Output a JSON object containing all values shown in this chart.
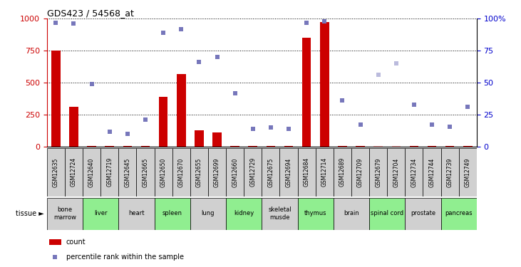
{
  "title": "GDS423 / 54568_at",
  "samples": [
    "GSM12635",
    "GSM12724",
    "GSM12640",
    "GSM12719",
    "GSM12645",
    "GSM12665",
    "GSM12650",
    "GSM12670",
    "GSM12655",
    "GSM12699",
    "GSM12660",
    "GSM12729",
    "GSM12675",
    "GSM12694",
    "GSM12684",
    "GSM12714",
    "GSM12689",
    "GSM12709",
    "GSM12679",
    "GSM12704",
    "GSM12734",
    "GSM12744",
    "GSM12739",
    "GSM12749"
  ],
  "tissues": [
    {
      "name": "bone\nmarrow",
      "start": 0,
      "end": 2,
      "color": "#d0d0d0"
    },
    {
      "name": "liver",
      "start": 2,
      "end": 4,
      "color": "#90ee90"
    },
    {
      "name": "heart",
      "start": 4,
      "end": 6,
      "color": "#d0d0d0"
    },
    {
      "name": "spleen",
      "start": 6,
      "end": 8,
      "color": "#90ee90"
    },
    {
      "name": "lung",
      "start": 8,
      "end": 10,
      "color": "#d0d0d0"
    },
    {
      "name": "kidney",
      "start": 10,
      "end": 12,
      "color": "#90ee90"
    },
    {
      "name": "skeletal\nmusde",
      "start": 12,
      "end": 14,
      "color": "#d0d0d0"
    },
    {
      "name": "thymus",
      "start": 14,
      "end": 16,
      "color": "#90ee90"
    },
    {
      "name": "brain",
      "start": 16,
      "end": 18,
      "color": "#d0d0d0"
    },
    {
      "name": "spinal cord",
      "start": 18,
      "end": 20,
      "color": "#90ee90"
    },
    {
      "name": "prostate",
      "start": 20,
      "end": 22,
      "color": "#d0d0d0"
    },
    {
      "name": "pancreas",
      "start": 22,
      "end": 24,
      "color": "#90ee90"
    }
  ],
  "bar_values": [
    750,
    310,
    5,
    5,
    5,
    5,
    390,
    570,
    130,
    110,
    5,
    5,
    5,
    5,
    850,
    975,
    5,
    5,
    5,
    5,
    5,
    5,
    5,
    5
  ],
  "bar_absent": [
    false,
    false,
    false,
    false,
    false,
    false,
    false,
    false,
    false,
    false,
    false,
    false,
    false,
    false,
    false,
    false,
    false,
    false,
    true,
    true,
    false,
    false,
    false,
    false
  ],
  "rank_values": [
    970,
    960,
    490,
    120,
    100,
    210,
    890,
    920,
    660,
    700,
    420,
    140,
    150,
    140,
    970,
    980,
    360,
    175,
    560,
    650,
    330,
    175,
    155,
    310
  ],
  "rank_absent": [
    false,
    false,
    false,
    false,
    false,
    false,
    false,
    false,
    false,
    false,
    false,
    false,
    false,
    false,
    false,
    false,
    false,
    false,
    true,
    true,
    false,
    false,
    false,
    false
  ],
  "ylim_left": [
    0,
    1000
  ],
  "ylim_right": [
    0,
    100
  ],
  "yticks_left": [
    0,
    250,
    500,
    750,
    1000
  ],
  "yticks_right": [
    0,
    25,
    50,
    75,
    100
  ],
  "bar_color": "#cc0000",
  "bar_absent_color": "#ffaaaa",
  "rank_color": "#7777bb",
  "rank_absent_color": "#bbbbdd",
  "bg_color": "#ffffff",
  "grid_color": "#000000",
  "title_color": "#000000",
  "left_axis_color": "#cc0000",
  "right_axis_color": "#0000cc",
  "sample_box_color": "#d0d0d0"
}
